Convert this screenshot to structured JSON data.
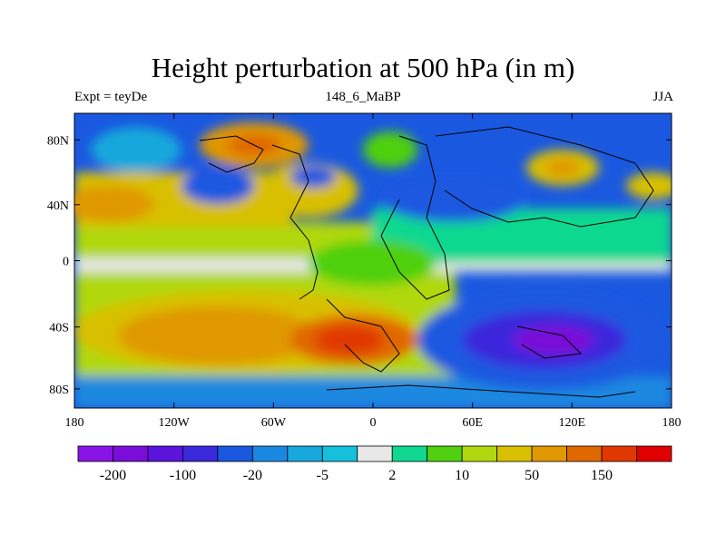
{
  "chart_data": {
    "type": "heatmap",
    "title": "Height perturbation at 500 hPa (in m)",
    "left_label": "Expt = teyDe",
    "center_label": "148_6_MaBP",
    "right_label": "JJA",
    "x_ticks": [
      "180",
      "120W",
      "60W",
      "0",
      "60E",
      "120E",
      "180"
    ],
    "y_ticks": [
      "80N",
      "40N",
      "0",
      "40S",
      "80S"
    ],
    "x_range": [
      -180,
      180
    ],
    "y_range": [
      -90,
      90
    ],
    "colorbar": {
      "colors": [
        "#8a14e6",
        "#7a0ed8",
        "#5a14dc",
        "#3a28dc",
        "#1a58e0",
        "#1a88e0",
        "#18a8dc",
        "#14c0dc",
        "#e8e8e8",
        "#10d890",
        "#50d010",
        "#b0d810",
        "#d8c000",
        "#e09800",
        "#e06800",
        "#e03800",
        "#e00000"
      ],
      "labels": [
        "-200",
        "-100",
        "-20",
        "-5",
        "2",
        "10",
        "50",
        "150"
      ]
    }
  }
}
